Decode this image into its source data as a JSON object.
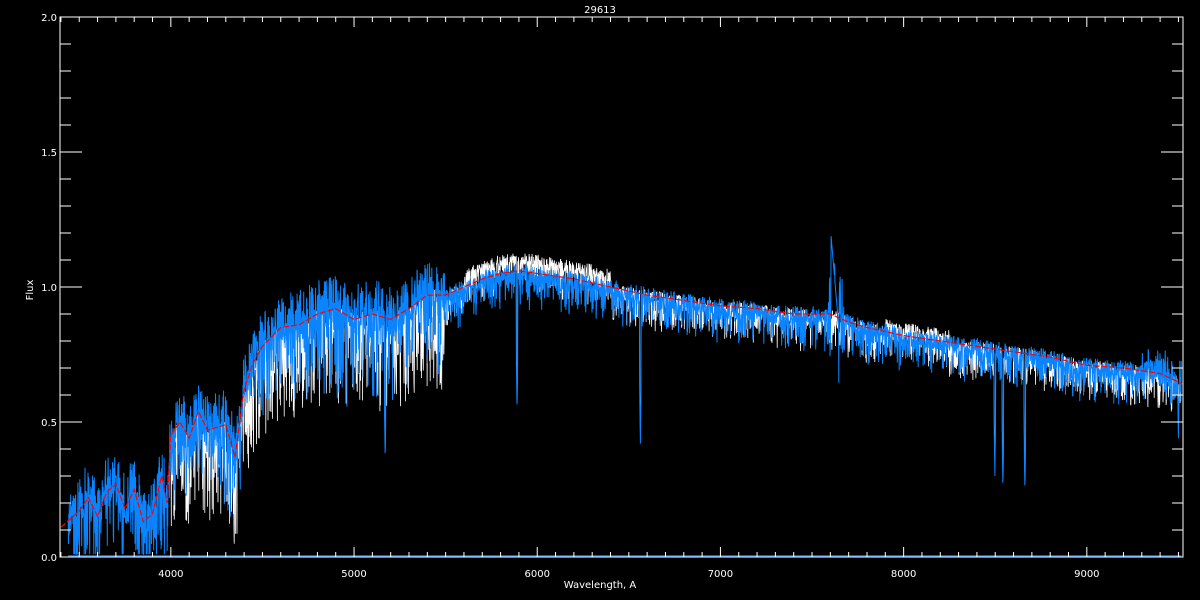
{
  "chart_data": {
    "type": "line",
    "title": "29613",
    "xlabel": "Wavelength, A",
    "ylabel": "Flux",
    "xlim": [
      3395,
      9525
    ],
    "ylim": [
      0.0,
      2.0
    ],
    "grid": false,
    "x_ticks": [
      "4000",
      "5000",
      "6000",
      "7000",
      "8000",
      "9000"
    ],
    "y_ticks": [
      "0.0",
      "0.5",
      "1.0",
      "1.5",
      "2.0"
    ],
    "colors": {
      "background": "#000000",
      "axes": "#ffffff",
      "observed": "#ffffff",
      "model": "#0a84ff",
      "smoothed": "#ff0000",
      "error": "#0a84ff"
    },
    "series": [
      {
        "key": "smoothed",
        "x": [
          3400,
          3500,
          3550,
          3600,
          3650,
          3700,
          3750,
          3800,
          3850,
          3900,
          3950,
          3980,
          4000,
          4050,
          4100,
          4150,
          4200,
          4300,
          4350,
          4400,
          4450,
          4500,
          4600,
          4700,
          4800,
          4900,
          5000,
          5100,
          5200,
          5300,
          5400,
          5500,
          5600,
          5700,
          5800,
          5900,
          6000,
          6200,
          6400,
          6600,
          6800,
          7000,
          7200,
          7400,
          7600,
          7700,
          7800,
          8000,
          8200,
          8400,
          8600,
          8800,
          9000,
          9200,
          9400,
          9525
        ],
        "y": [
          0.11,
          0.17,
          0.22,
          0.15,
          0.24,
          0.27,
          0.18,
          0.25,
          0.13,
          0.16,
          0.3,
          0.2,
          0.45,
          0.5,
          0.44,
          0.54,
          0.47,
          0.49,
          0.37,
          0.62,
          0.72,
          0.78,
          0.85,
          0.86,
          0.9,
          0.92,
          0.88,
          0.9,
          0.88,
          0.92,
          0.97,
          0.97,
          1.0,
          1.03,
          1.05,
          1.06,
          1.05,
          1.03,
          1.0,
          0.97,
          0.95,
          0.93,
          0.92,
          0.9,
          0.9,
          0.87,
          0.85,
          0.82,
          0.8,
          0.78,
          0.76,
          0.74,
          0.71,
          0.7,
          0.68,
          0.64
        ]
      }
    ],
    "absorption_lines": [
      {
        "x": 5170,
        "y": 0.36
      },
      {
        "x": 5890,
        "y": 0.54
      },
      {
        "x": 6563,
        "y": 0.42
      },
      {
        "x": 8498,
        "y": 0.3
      },
      {
        "x": 8542,
        "y": 0.25
      },
      {
        "x": 8662,
        "y": 0.24
      },
      {
        "x": 9500,
        "y": 0.44
      }
    ],
    "emission_features": [
      {
        "x": 7605,
        "y": 1.18
      }
    ]
  }
}
